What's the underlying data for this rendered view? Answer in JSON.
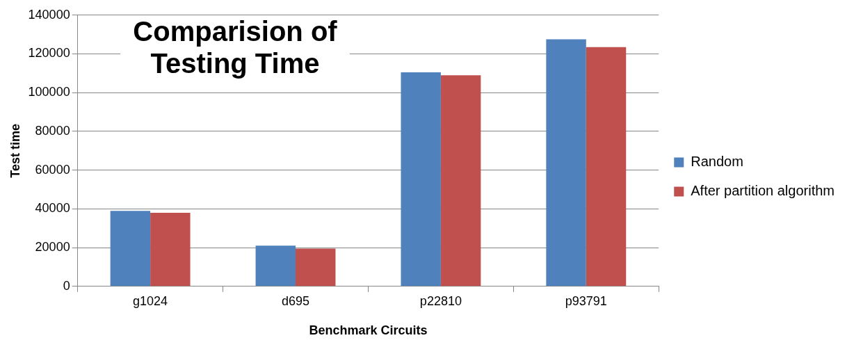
{
  "chart_data": {
    "type": "bar",
    "title": "Comparision of Testing Time",
    "xlabel": "Benchmark Circuits",
    "ylabel": "Test time",
    "categories": [
      "g1024",
      "d695",
      "p22810",
      "p93791"
    ],
    "series": [
      {
        "name": "Random",
        "color": "#4f81bd",
        "values": [
          39000,
          21000,
          110500,
          127500
        ]
      },
      {
        "name": "After partition algorithm",
        "color": "#c0504d",
        "values": [
          38000,
          19500,
          109000,
          123500
        ]
      }
    ],
    "ylim": [
      0,
      140000
    ],
    "yticks": [
      0,
      20000,
      40000,
      60000,
      80000,
      100000,
      120000,
      140000
    ],
    "grid": "y",
    "legend": "right"
  }
}
